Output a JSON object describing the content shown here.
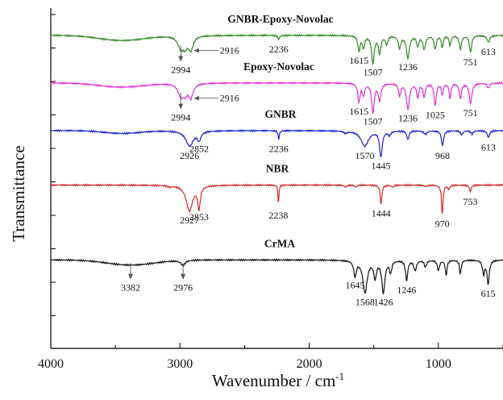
{
  "chart_data": {
    "type": "line",
    "title": "",
    "xlabel": "Wavenumber / cm",
    "xlabel_superscript": "-1",
    "ylabel": "Transmittance",
    "xlim": [
      4000,
      500
    ],
    "x_reversed": true,
    "xticks": [
      4000,
      3000,
      2000,
      1000
    ],
    "y_tick_labels": false,
    "grid": false,
    "legend": "none",
    "series": [
      {
        "name": "GNBR-Epoxy-Novolac",
        "color": "#2e8b22",
        "baseline": 0.92,
        "labels": [
          {
            "text": "2994",
            "x": 2994,
            "arrow": true
          },
          {
            "text": "2916",
            "x": 2916,
            "arrow": true
          },
          {
            "text": "2236",
            "x": 2236
          },
          {
            "text": "1615",
            "x": 1615
          },
          {
            "text": "1507",
            "x": 1507
          },
          {
            "text": "1236",
            "x": 1236
          },
          {
            "text": "751",
            "x": 751
          },
          {
            "text": "613",
            "x": 613
          }
        ]
      },
      {
        "name": "Epoxy-Novolac",
        "color": "#e030d8",
        "baseline": 0.78,
        "labels": [
          {
            "text": "2994",
            "x": 2994,
            "arrow": true
          },
          {
            "text": "2916",
            "x": 2916,
            "arrow": true
          },
          {
            "text": "1615",
            "x": 1615
          },
          {
            "text": "1507",
            "x": 1507
          },
          {
            "text": "1236",
            "x": 1236
          },
          {
            "text": "1025",
            "x": 1025
          },
          {
            "text": "751",
            "x": 751
          }
        ]
      },
      {
        "name": "GNBR",
        "color": "#1a22cc",
        "baseline": 0.64,
        "labels": [
          {
            "text": "2926",
            "x": 2926
          },
          {
            "text": "2852",
            "x": 2852
          },
          {
            "text": "2236",
            "x": 2236
          },
          {
            "text": "1570",
            "x": 1570
          },
          {
            "text": "1445",
            "x": 1445
          },
          {
            "text": "968",
            "x": 968
          },
          {
            "text": "613",
            "x": 613
          }
        ]
      },
      {
        "name": "NBR",
        "color": "#d42a2a",
        "baseline": 0.48,
        "labels": [
          {
            "text": "2927",
            "x": 2927
          },
          {
            "text": "2853",
            "x": 2853
          },
          {
            "text": "2238",
            "x": 2238
          },
          {
            "text": "1444",
            "x": 1444
          },
          {
            "text": "970",
            "x": 970
          },
          {
            "text": "753",
            "x": 753
          }
        ]
      },
      {
        "name": "CrMA",
        "color": "#111111",
        "baseline": 0.26,
        "labels": [
          {
            "text": "3382",
            "x": 3382,
            "arrow": true
          },
          {
            "text": "2976",
            "x": 2976,
            "arrow": true
          },
          {
            "text": "1645",
            "x": 1645
          },
          {
            "text": "1568",
            "x": 1568
          },
          {
            "text": "1426",
            "x": 1426
          },
          {
            "text": "1246",
            "x": 1246
          },
          {
            "text": "615",
            "x": 615
          }
        ]
      }
    ]
  }
}
